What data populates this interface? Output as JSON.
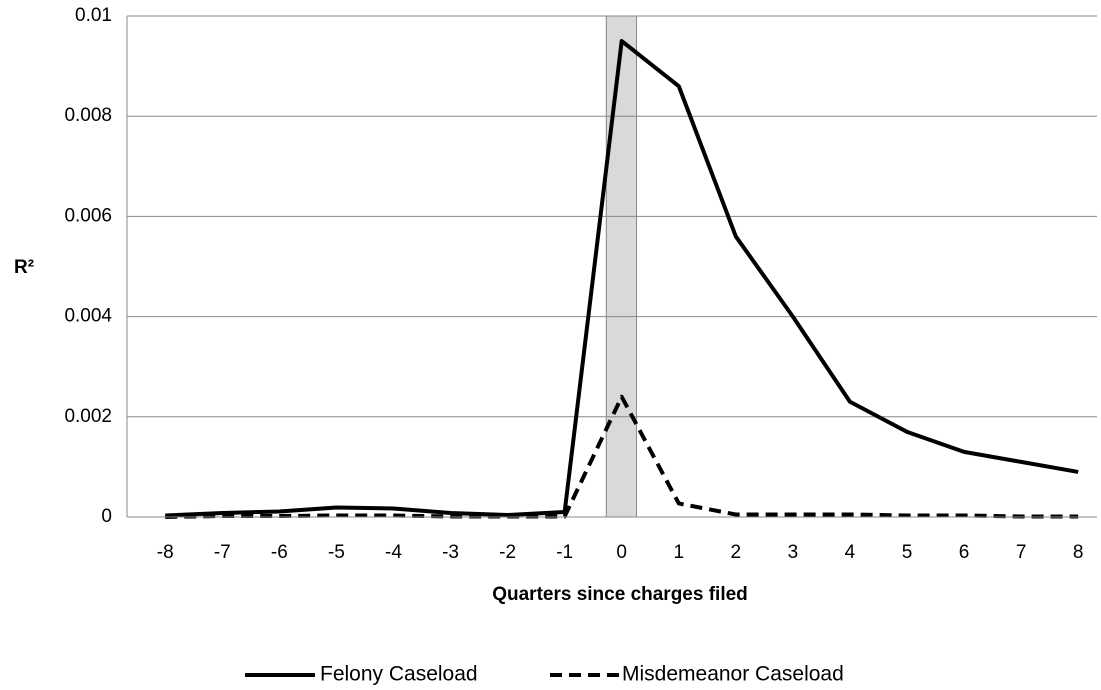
{
  "chart_data": {
    "type": "line",
    "y_label": "R²",
    "x_label": "Quarters since charges filed",
    "x": [
      -8,
      -7,
      -6,
      -5,
      -4,
      -3,
      -2,
      -1,
      0,
      1,
      2,
      3,
      4,
      5,
      6,
      7,
      8
    ],
    "series": [
      {
        "name": "Felony Caseload",
        "color": "#000000",
        "dash": "solid",
        "values": [
          3e-05,
          8e-05,
          0.00011,
          0.00019,
          0.00017,
          8e-05,
          4e-05,
          0.0001,
          0.0095,
          0.0086,
          0.0056,
          0.004,
          0.0023,
          0.0017,
          0.0013,
          0.0011,
          0.0009
        ]
      },
      {
        "name": "Misdemeanor Caseload",
        "color": "#000000",
        "dash": "dashed",
        "values": [
          0,
          2e-05,
          2e-05,
          3e-05,
          3e-05,
          1e-05,
          1e-05,
          1e-05,
          0.0024,
          0.00027,
          5e-05,
          5e-05,
          5e-05,
          3e-05,
          3e-05,
          1e-05,
          1e-05
        ]
      }
    ],
    "xlim": [
      -8.67,
      8.33
    ],
    "xticks": [
      -8,
      -7,
      -6,
      -5,
      -4,
      -3,
      -2,
      -1,
      0,
      1,
      2,
      3,
      4,
      5,
      6,
      7,
      8
    ],
    "ylim": [
      0,
      0.01
    ],
    "yticks": [
      0,
      0.002,
      0.004,
      0.006,
      0.008,
      0.01
    ],
    "grid": true,
    "shaded_x": [
      -0.27,
      0.26
    ],
    "legend": "bottom"
  }
}
